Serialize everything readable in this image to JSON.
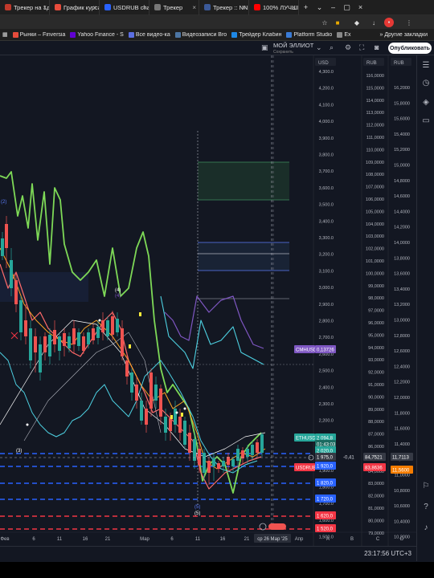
{
  "browser": {
    "tabs": [
      {
        "label": "Трекер на 1д",
        "fav": "#c0392b"
      },
      {
        "label": "График курса к",
        "fav": "#e74c3c"
      },
      {
        "label": "USDRUB chart",
        "fav": "#2962ff"
      },
      {
        "label": "Трекер",
        "fav": "#777"
      },
      {
        "label": "Трекер :: NNM",
        "fav": "#3b5998"
      },
      {
        "label": "100% ЛУЧШИЙ",
        "fav": "#ff0000"
      }
    ],
    "bookmarks": [
      {
        "label": "Рынки – Finversia",
        "fav": "#e74c3c"
      },
      {
        "label": "Yahoo Finance - S",
        "fav": "#6001d2"
      },
      {
        "label": "Все видео-ка",
        "fav": "#5b6ee1"
      },
      {
        "label": "Видеозаписи Bro",
        "fav": "#4c75a3"
      },
      {
        "label": "Трейдер Клабин",
        "fav": "#1e88e5"
      },
      {
        "label": "Platform Studio",
        "fav": "#3a7bd5"
      },
      {
        "label": "Ex",
        "fav": "#888"
      }
    ],
    "other_bookmarks": "Другие закладки"
  },
  "toolbar": {
    "layout_name": "МОЙ ЭЛЛИОТ",
    "layout_sub": "Сохранить",
    "publish": "Опубликовать"
  },
  "scales": {
    "left_header": "USD",
    "mid_header": "RUB",
    "right_header": "RUB",
    "left_ticks": [
      "4,300.0",
      "4,200.0",
      "4,100.0",
      "4,000.0",
      "3,900.0",
      "3,800.0",
      "3,700.0",
      "3,600.0",
      "3,500.0",
      "3,400.0",
      "3,300.0",
      "3,200.0",
      "3,100.0",
      "3,000.0",
      "2,900.0",
      "2,800.0",
      "2,700.0",
      "2,600.0",
      "2,500.0",
      "2,400.0",
      "2,300.0",
      "2,200.0",
      "2,100.0",
      "2,000.0",
      "1,900.0",
      "1,800.0",
      "1,700.0",
      "1,600.0",
      "1,500.0"
    ],
    "mid_ticks": [
      "116,0000",
      "115,0000",
      "114,0000",
      "113,0000",
      "112,0000",
      "111,0000",
      "110,0000",
      "109,0000",
      "108,0000",
      "107,0000",
      "106,0000",
      "105,0000",
      "104,0000",
      "103,0000",
      "102,0000",
      "101,0000",
      "100,0000",
      "99,0000",
      "98,0000",
      "97,0000",
      "96,0000",
      "95,0000",
      "94,0000",
      "93,0000",
      "92,0000",
      "91,0000",
      "90,0000",
      "89,0000",
      "88,0000",
      "87,0000",
      "86,0000",
      "85,0000",
      "84,0000",
      "83,0000",
      "82,0000",
      "81,0000",
      "80,0000",
      "79,0000"
    ],
    "right_ticks": [
      "16,2000",
      "15,8000",
      "15,6000",
      "15,4000",
      "15,2000",
      "15,0000",
      "14,8000",
      "14,6000",
      "14,4000",
      "14,2000",
      "14,0000",
      "13,8000",
      "13,6000",
      "13,4000",
      "13,2000",
      "13,0000",
      "12,8000",
      "12,6000",
      "12,4000",
      "12,2000",
      "12,0000",
      "11,8000",
      "11,6000",
      "11,4000",
      "11,2000",
      "11,0000",
      "10,8000",
      "10,6000",
      "10,4000",
      "10,2000"
    ],
    "time_ticks": [
      "Фев",
      "6",
      "11",
      "16",
      "21",
      "Мар",
      "6",
      "11",
      "16",
      "21",
      "ср 26 Мар '25",
      "Апр"
    ],
    "abc_ticks": [
      "A",
      "B",
      "C",
      "D"
    ]
  },
  "labels": {
    "cmhusd": {
      "name": "CMHUSD",
      "value": "0,13726",
      "color": "#7e57c2"
    },
    "ethusd": {
      "name": "ETHUSD",
      "value": "2 094,8",
      "sub": "01:43:03",
      "color": "#26a69a"
    },
    "eth_price": "2 020,0",
    "cross_price": "1 975,0",
    "cross_delta": "-0,41",
    "mid_price": "84,7521",
    "right_price": "11,7113",
    "usdrub": {
      "name": "USDRUB",
      "value": "83,8636",
      "color": "#f23645"
    },
    "usdrub_right": "11,5600",
    "level_1920": "1 920,0",
    "level_1820": "1 820,0",
    "level_1720": "1 720,0",
    "level_1620": "1 620,0",
    "level_1520": "1 520,0"
  },
  "waves": [
    {
      "text": "(2)",
      "color": "#5b7cfa"
    },
    {
      "text": "(4)",
      "color": "#ffffff"
    },
    {
      "text": "(4)",
      "color": "#7e57c2"
    },
    {
      "text": "(3)",
      "color": "#ffffff"
    },
    {
      "text": "(5)",
      "color": "#ffffff"
    },
    {
      "text": "(5)",
      "color": "#5b7cfa"
    }
  ],
  "status": {
    "clock": "23:17:56 UTC+3"
  }
}
